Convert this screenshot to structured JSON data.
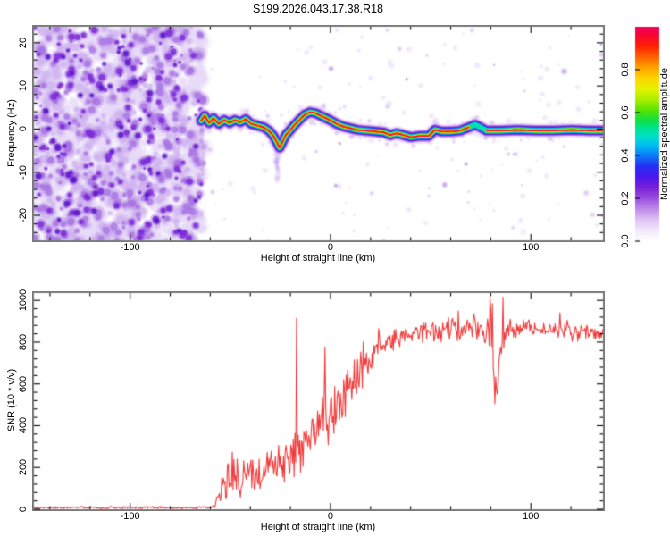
{
  "title": "S199.2026.043.17.38.R18",
  "chart_data": [
    {
      "type": "heatmap",
      "panel": "spectrogram",
      "title": "S199.2026.043.17.38.R18",
      "xlabel": "Height of straight line (km)",
      "ylabel": "Frequency (Hz)",
      "xlim": [
        -148,
        136
      ],
      "ylim": [
        -25.8,
        23.7
      ],
      "xticks": [
        {
          "v": -100,
          "label": "-100"
        },
        {
          "v": 0,
          "label": "0"
        },
        {
          "v": 100,
          "label": "100"
        }
      ],
      "x_minor_step": 20,
      "yticks": [
        {
          "v": -20,
          "label": "-20"
        },
        {
          "v": -10,
          "label": "-10"
        },
        {
          "v": 0,
          "label": "0"
        },
        {
          "v": 10,
          "label": "10"
        },
        {
          "v": 20,
          "label": "20"
        }
      ],
      "y_minor_step": 2,
      "frame_color": "#7a7a7a",
      "tick_color": "#000000",
      "noise_region": {
        "x_end_km": -63.5,
        "palette": [
          "#e7d9f7",
          "#cfb2ef",
          "#a873e4",
          "#7b2ad8",
          "#5c14c8"
        ]
      },
      "colorbar": {
        "label": "Normalized spectral amplitude",
        "lim": [
          0,
          1
        ],
        "ticks": [
          {
            "v": 0,
            "label": "0.0"
          },
          {
            "v": 0.2,
            "label": "0.2"
          },
          {
            "v": 0.4,
            "label": "0.4"
          },
          {
            "v": 0.6,
            "label": "0.6"
          },
          {
            "v": 0.8,
            "label": "0.8"
          }
        ],
        "stops": [
          [
            0,
            "#ffffff"
          ],
          [
            0.05,
            "#f3e9fb"
          ],
          [
            0.1,
            "#dfc4f5"
          ],
          [
            0.15,
            "#be8cea"
          ],
          [
            0.2,
            "#9a4fe0"
          ],
          [
            0.25,
            "#7a1fd8"
          ],
          [
            0.3,
            "#4a18ec"
          ],
          [
            0.35,
            "#2430f4"
          ],
          [
            0.4,
            "#0f7cf8"
          ],
          [
            0.44,
            "#00b4f4"
          ],
          [
            0.48,
            "#00dcd4"
          ],
          [
            0.52,
            "#00e49c"
          ],
          [
            0.56,
            "#0ce04c"
          ],
          [
            0.61,
            "#55e400"
          ],
          [
            0.66,
            "#a8ee00"
          ],
          [
            0.71,
            "#e6f200"
          ],
          [
            0.76,
            "#ffd400"
          ],
          [
            0.81,
            "#ffa200"
          ],
          [
            0.86,
            "#ff6000"
          ],
          [
            0.91,
            "#ff2000"
          ],
          [
            0.96,
            "#f70634"
          ],
          [
            1,
            "#f2005c"
          ]
        ]
      },
      "ridge_points": [
        [
          -64.6,
          1.9
        ],
        [
          -62.8,
          3.1
        ],
        [
          -60.6,
          1.4
        ],
        [
          -58.4,
          2.5
        ],
        [
          -55.7,
          1.2
        ],
        [
          -53.0,
          2.1
        ],
        [
          -50.3,
          1.4
        ],
        [
          -47.7,
          2.1
        ],
        [
          -45.0,
          1.6
        ],
        [
          -42.3,
          2.3
        ],
        [
          -39.6,
          1.2
        ],
        [
          -36.5,
          0.8
        ],
        [
          -33.4,
          0.4
        ],
        [
          -30.7,
          -0.4
        ],
        [
          -28.5,
          -1.6
        ],
        [
          -26.7,
          -3.1
        ],
        [
          -25.4,
          -4.3
        ],
        [
          -24.1,
          -3.1
        ],
        [
          -22.3,
          -1.4
        ],
        [
          -20.0,
          -0.2
        ],
        [
          -17.8,
          1.0
        ],
        [
          -15.1,
          2.3
        ],
        [
          -12.9,
          3.3
        ],
        [
          -10.2,
          3.9
        ],
        [
          -7.6,
          3.7
        ],
        [
          -4.9,
          3.1
        ],
        [
          -2.2,
          2.5
        ],
        [
          0.4,
          1.9
        ],
        [
          3.1,
          1.2
        ],
        [
          6.2,
          0.6
        ],
        [
          9.8,
          0.2
        ],
        [
          13.4,
          -0.2
        ],
        [
          17.8,
          -0.4
        ],
        [
          22.3,
          -0.6
        ],
        [
          26.7,
          -0.8
        ],
        [
          29.8,
          -1.4
        ],
        [
          33.0,
          -1.0
        ],
        [
          36.5,
          -1.4
        ],
        [
          40.1,
          -1.9
        ],
        [
          44.5,
          -1.6
        ],
        [
          49.0,
          -1.6
        ],
        [
          52.1,
          -0.2
        ],
        [
          55.7,
          -0.6
        ],
        [
          60.1,
          -0.6
        ],
        [
          64.6,
          -0.4
        ],
        [
          69.0,
          0.4
        ],
        [
          72.2,
          1.0
        ],
        [
          74.8,
          0.4
        ],
        [
          77.9,
          -0.4
        ],
        [
          84.6,
          -0.4
        ],
        [
          93.5,
          -0.2
        ],
        [
          102.4,
          -0.4
        ],
        [
          111.4,
          -0.4
        ],
        [
          120.3,
          -0.2
        ],
        [
          129.2,
          -0.4
        ],
        [
          135.9,
          -0.4
        ]
      ],
      "weak_segment_km": [
        70.5,
        76.5
      ],
      "streaks_km": [
        [
          -26.6,
          -4.5,
          -12.5
        ],
        [
          -63.8,
          0.0,
          -11.0
        ]
      ]
    },
    {
      "type": "line",
      "panel": "snr",
      "xlabel": "Height of straight line (km)",
      "ylabel": "SNR (10 * v/v)",
      "xlim": [
        -148,
        136
      ],
      "ylim": [
        0,
        1035
      ],
      "xticks": [
        {
          "v": -100,
          "label": "-100"
        },
        {
          "v": 0,
          "label": "0"
        },
        {
          "v": 100,
          "label": "100"
        }
      ],
      "x_minor_step": 20,
      "yticks": [
        {
          "v": 0,
          "label": "0"
        },
        {
          "v": 200,
          "label": "200"
        },
        {
          "v": 400,
          "label": "400"
        },
        {
          "v": 600,
          "label": "600"
        },
        {
          "v": 800,
          "label": "800"
        },
        {
          "v": 1000,
          "label": "1000"
        }
      ],
      "y_minor_step": 40,
      "frame_color": "#7a7a7a",
      "tick_color": "#000000",
      "line_color": "#f03c3c",
      "envelope_points": [
        [
          -148,
          8,
          6
        ],
        [
          -100,
          8,
          6
        ],
        [
          -70,
          8,
          6
        ],
        [
          -62,
          9,
          7
        ],
        [
          -58,
          14,
          10
        ],
        [
          -55,
          90,
          80
        ],
        [
          -53,
          150,
          120
        ],
        [
          -51,
          120,
          100
        ],
        [
          -49,
          200,
          120
        ],
        [
          -47,
          150,
          100
        ],
        [
          -45,
          130,
          90
        ],
        [
          -43,
          160,
          90
        ],
        [
          -40,
          170,
          100
        ],
        [
          -37,
          150,
          80
        ],
        [
          -34,
          190,
          90
        ],
        [
          -30,
          210,
          100
        ],
        [
          -26,
          250,
          110
        ],
        [
          -22,
          230,
          90
        ],
        [
          -19,
          260,
          100
        ],
        [
          -15,
          290,
          110
        ],
        [
          -12,
          340,
          130
        ],
        [
          -8,
          370,
          130
        ],
        [
          -5,
          420,
          150
        ],
        [
          -2,
          450,
          140
        ],
        [
          0,
          470,
          130
        ],
        [
          3,
          500,
          140
        ],
        [
          6,
          530,
          130
        ],
        [
          9,
          560,
          110
        ],
        [
          12,
          610,
          100
        ],
        [
          15,
          660,
          90
        ],
        [
          18,
          700,
          80
        ],
        [
          21,
          740,
          70
        ],
        [
          24,
          770,
          60
        ],
        [
          27,
          790,
          55
        ],
        [
          30,
          810,
          50
        ],
        [
          35,
          825,
          45
        ],
        [
          40,
          840,
          45
        ],
        [
          46,
          850,
          50
        ],
        [
          52,
          855,
          50
        ],
        [
          58,
          860,
          55
        ],
        [
          63,
          850,
          55
        ],
        [
          68,
          865,
          60
        ],
        [
          72,
          875,
          65
        ],
        [
          76,
          880,
          80
        ],
        [
          79,
          870,
          120
        ],
        [
          81,
          700,
          160
        ],
        [
          83,
          560,
          80
        ],
        [
          85,
          780,
          100
        ],
        [
          88,
          850,
          70
        ],
        [
          92,
          865,
          55
        ],
        [
          98,
          870,
          50
        ],
        [
          104,
          860,
          45
        ],
        [
          110,
          855,
          45
        ],
        [
          116,
          860,
          50
        ],
        [
          122,
          845,
          45
        ],
        [
          128,
          855,
          50
        ],
        [
          132,
          840,
          45
        ],
        [
          136,
          830,
          40
        ]
      ],
      "spikes": [
        [
          -17,
          915
        ],
        [
          79.5,
          1010
        ],
        [
          80.8,
          985
        ],
        [
          82,
          505
        ]
      ]
    }
  ]
}
